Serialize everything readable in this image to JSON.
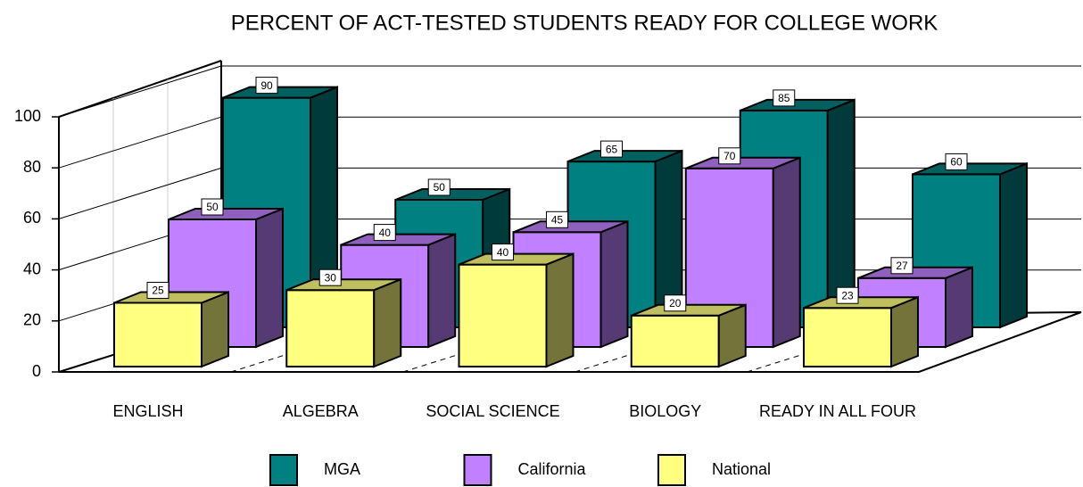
{
  "chart_data": {
    "type": "bar3d",
    "title": "PERCENT OF ACT-TESTED STUDENTS READY FOR COLLEGE WORK",
    "categories": [
      "ENGLISH",
      "ALGEBRA",
      "SOCIAL SCIENCE",
      "BIOLOGY",
      "READY IN ALL FOUR"
    ],
    "series": [
      {
        "name": "MGA",
        "color": "#008080",
        "values": [
          90,
          50,
          65,
          85,
          60
        ]
      },
      {
        "name": "California",
        "color": "#c080ff",
        "values": [
          50,
          40,
          45,
          70,
          27
        ]
      },
      {
        "name": "National",
        "color": "#ffff80",
        "values": [
          25,
          30,
          40,
          20,
          23
        ]
      }
    ],
    "ylim": [
      0,
      100
    ],
    "yticks": [
      0,
      20,
      40,
      60,
      80,
      100
    ],
    "grid": true
  }
}
